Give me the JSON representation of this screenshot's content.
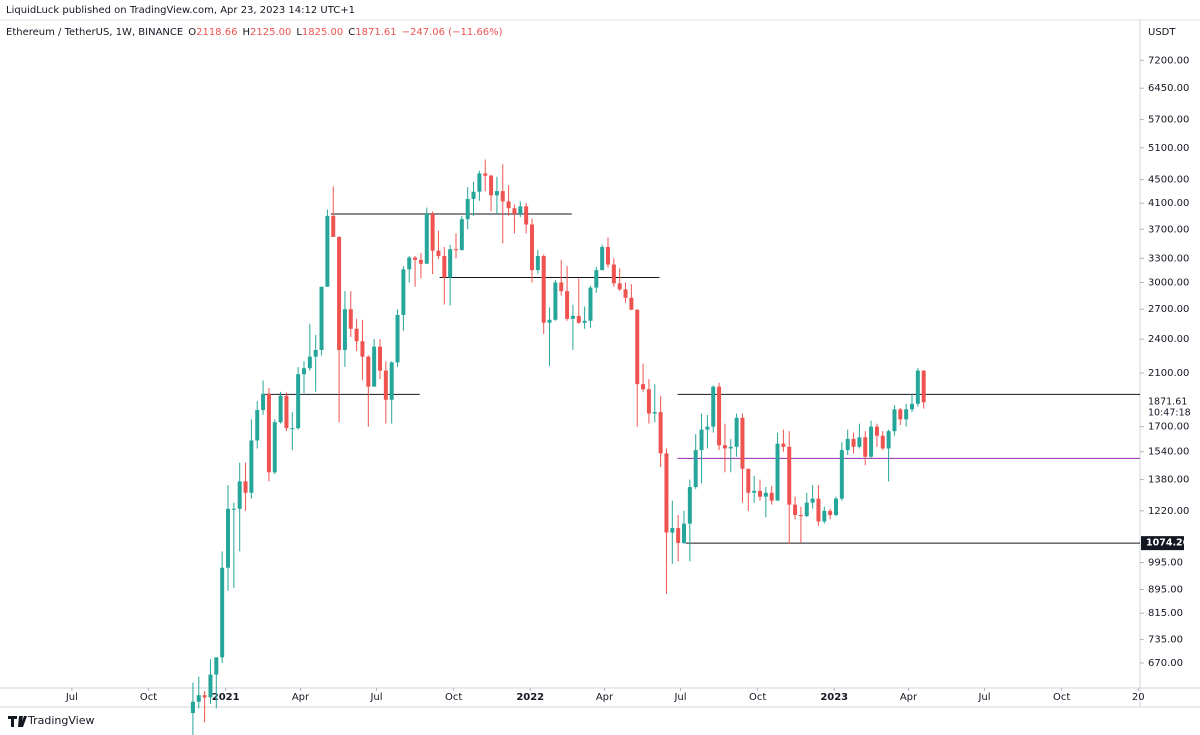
{
  "chart_data": {
    "type": "candlestick",
    "publisher": "LiquidLuck published on TradingView.com, Apr 23, 2023 14:12 UTC+1",
    "symbol": "Ethereum / TetherUS, 1W, BINANCE",
    "legend_prefixes": [
      "O",
      "H",
      "L",
      "C"
    ],
    "legend_values": [
      "2118.66",
      "2125.00",
      "1825.00",
      "1871.61"
    ],
    "legend_change": "−247.06 (−11.66%)",
    "currency": "USDT",
    "countdown": "10:47:18",
    "brand": "TradingView",
    "log_scale": true,
    "grid": false,
    "up_color": "#26a69a",
    "down_color": "#ef5350",
    "ylim": [
      607,
      7800
    ],
    "yticks": [
      {
        "value": 7200,
        "label": "7200.00"
      },
      {
        "value": 6450,
        "label": "6450.00"
      },
      {
        "value": 5700,
        "label": "5700.00"
      },
      {
        "value": 5100,
        "label": "5100.00"
      },
      {
        "value": 4500,
        "label": "4500.00"
      },
      {
        "value": 4100,
        "label": "4100.00"
      },
      {
        "value": 3700,
        "label": "3700.00"
      },
      {
        "value": 3300,
        "label": "3300.00"
      },
      {
        "value": 3000,
        "label": "3000.00"
      },
      {
        "value": 2700,
        "label": "2700.00"
      },
      {
        "value": 2400,
        "label": "2400.00"
      },
      {
        "value": 2100,
        "label": "2100.00"
      },
      {
        "value": 1700,
        "label": "1700.00"
      },
      {
        "value": 1540,
        "label": "1540.00"
      },
      {
        "value": 1380,
        "label": "1380.00"
      },
      {
        "value": 1220,
        "label": "1220.00"
      },
      {
        "value": 995,
        "label": "995.00"
      },
      {
        "value": 895,
        "label": "895.00"
      },
      {
        "value": 815,
        "label": "815.00"
      },
      {
        "value": 735,
        "label": "735.00"
      },
      {
        "value": 670,
        "label": "670.00"
      }
    ],
    "xlim": [
      -33,
      162
    ],
    "xticks": [
      {
        "value": -20.7,
        "label": "Jul"
      },
      {
        "value": -7.6,
        "label": "Oct"
      },
      {
        "value": 5.6,
        "label": "2021"
      },
      {
        "value": 18.4,
        "label": "Apr"
      },
      {
        "value": 31.4,
        "label": "Jul"
      },
      {
        "value": 44.6,
        "label": "Oct"
      },
      {
        "value": 57.7,
        "label": "2022"
      },
      {
        "value": 70.4,
        "label": "Apr"
      },
      {
        "value": 83.4,
        "label": "Jul"
      },
      {
        "value": 96.6,
        "label": "Oct"
      },
      {
        "value": 109.7,
        "label": "2023"
      },
      {
        "value": 122.4,
        "label": "Apr"
      },
      {
        "value": 135.4,
        "label": "Jul"
      },
      {
        "value": 148.6,
        "label": "Oct"
      },
      {
        "value": 161.7,
        "label": "20"
      }
    ],
    "levels": [
      {
        "value": 3930,
        "x": [
          23.6,
          64.8
        ],
        "color": "#131722"
      },
      {
        "value": 1930,
        "x": [
          12.3,
          38.8
        ],
        "color": "#131722"
      },
      {
        "value": 3060,
        "x": [
          42.2,
          79.8
        ],
        "color": "#131722"
      },
      {
        "value": 1930,
        "x": [
          82.9,
          162
        ],
        "color": "#131722"
      },
      {
        "value": 1500,
        "x": [
          82.9,
          162
        ],
        "color": "#9c27b0"
      },
      {
        "value": 1074.26,
        "x": [
          84.3,
          162
        ],
        "color": "#131722"
      }
    ],
    "candles": [
      [
        550,
        620,
        480,
        575
      ],
      [
        575,
        635,
        560,
        590
      ],
      [
        590,
        600,
        530,
        585
      ],
      [
        585,
        680,
        570,
        640
      ],
      [
        640,
        685,
        560,
        685
      ],
      [
        685,
        1040,
        670,
        975
      ],
      [
        975,
        1350,
        890,
        1230
      ],
      [
        1230,
        1260,
        900,
        1230
      ],
      [
        1230,
        1475,
        1040,
        1370
      ],
      [
        1370,
        1475,
        1220,
        1310
      ],
      [
        1310,
        1750,
        1280,
        1610
      ],
      [
        1610,
        1880,
        1560,
        1815
      ],
      [
        1815,
        2040,
        1780,
        1935
      ],
      [
        1935,
        1980,
        1370,
        1420
      ],
      [
        1420,
        1750,
        1410,
        1730
      ],
      [
        1730,
        1950,
        1720,
        1920
      ],
      [
        1920,
        1945,
        1670,
        1690
      ],
      [
        1690,
        1800,
        1550,
        1690
      ],
      [
        1690,
        2150,
        1680,
        2090
      ],
      [
        2090,
        2200,
        1940,
        2140
      ],
      [
        2140,
        2550,
        2120,
        2240
      ],
      [
        2240,
        2440,
        1950,
        2300
      ],
      [
        2300,
        2950,
        2250,
        2950
      ],
      [
        2950,
        4000,
        2950,
        3900
      ],
      [
        3900,
        4380,
        3600,
        3590
      ],
      [
        3590,
        3600,
        1730,
        2300
      ],
      [
        2300,
        2900,
        2150,
        2700
      ],
      [
        2700,
        2900,
        2420,
        2500
      ],
      [
        2500,
        2600,
        2290,
        2380
      ],
      [
        2380,
        2590,
        2040,
        2240
      ],
      [
        2240,
        2250,
        1700,
        1990
      ],
      [
        1990,
        2400,
        1990,
        2330
      ],
      [
        2330,
        2400,
        2050,
        2120
      ],
      [
        2120,
        2200,
        1720,
        1890
      ],
      [
        1890,
        2200,
        1720,
        2190
      ],
      [
        2190,
        2700,
        2150,
        2640
      ],
      [
        2640,
        3200,
        2480,
        3160
      ],
      [
        3160,
        3330,
        3000,
        3310
      ],
      [
        3310,
        3330,
        2950,
        3280
      ],
      [
        3280,
        3370,
        3050,
        3230
      ],
      [
        3230,
        4030,
        3230,
        3930
      ],
      [
        3930,
        3970,
        3100,
        3400
      ],
      [
        3400,
        3680,
        3290,
        3330
      ],
      [
        3330,
        3450,
        2750,
        3060
      ],
      [
        3060,
        3480,
        2740,
        3420
      ],
      [
        3420,
        3640,
        3300,
        3410
      ],
      [
        3410,
        3900,
        3400,
        3850
      ],
      [
        3850,
        4370,
        3700,
        4170
      ],
      [
        4170,
        4460,
        3900,
        4290
      ],
      [
        4290,
        4660,
        4140,
        4610
      ],
      [
        4610,
        4870,
        4300,
        4570
      ],
      [
        4570,
        4590,
        3970,
        4230
      ],
      [
        4230,
        4550,
        3930,
        4300
      ],
      [
        4300,
        4780,
        3500,
        4130
      ],
      [
        4130,
        4400,
        3900,
        4020
      ],
      [
        4020,
        4080,
        3640,
        3930
      ],
      [
        3930,
        4130,
        3880,
        4050
      ],
      [
        4050,
        4100,
        3640,
        3770
      ],
      [
        3770,
        3860,
        3000,
        3150
      ],
      [
        3150,
        3410,
        3100,
        3330
      ],
      [
        3330,
        3350,
        2450,
        2560
      ],
      [
        2560,
        2720,
        2160,
        2590
      ],
      [
        2590,
        3030,
        2580,
        3000
      ],
      [
        3000,
        3280,
        2850,
        2900
      ],
      [
        2900,
        3200,
        2580,
        2600
      ],
      [
        2600,
        2750,
        2300,
        2630
      ],
      [
        2630,
        3050,
        2550,
        2560
      ],
      [
        2560,
        2730,
        2500,
        2580
      ],
      [
        2580,
        2960,
        2510,
        2940
      ],
      [
        2940,
        3190,
        2880,
        3150
      ],
      [
        3150,
        3480,
        3150,
        3450
      ],
      [
        3450,
        3580,
        3180,
        3220
      ],
      [
        3220,
        3300,
        2950,
        2990
      ],
      [
        2990,
        3170,
        2900,
        2920
      ],
      [
        2920,
        3000,
        2770,
        2825
      ],
      [
        2825,
        2980,
        2690,
        2695
      ],
      [
        2695,
        2700,
        1700,
        2010
      ],
      [
        2010,
        2180,
        1950,
        1970
      ],
      [
        1970,
        2050,
        1720,
        1790
      ],
      [
        1790,
        2010,
        1730,
        1800
      ],
      [
        1800,
        1920,
        1450,
        1530
      ],
      [
        1530,
        1560,
        880,
        1120
      ],
      [
        1120,
        1270,
        990,
        1140
      ],
      [
        1140,
        1200,
        1000,
        1075
      ],
      [
        1075,
        1220,
        1070,
        1160
      ],
      [
        1160,
        1380,
        1000,
        1340
      ],
      [
        1340,
        1650,
        1330,
        1550
      ],
      [
        1550,
        1790,
        1360,
        1680
      ],
      [
        1680,
        1780,
        1560,
        1700
      ],
      [
        1700,
        2000,
        1660,
        1990
      ],
      [
        1990,
        2020,
        1550,
        1580
      ],
      [
        1580,
        1720,
        1420,
        1560
      ],
      [
        1560,
        1620,
        1420,
        1570
      ],
      [
        1570,
        1790,
        1510,
        1760
      ],
      [
        1760,
        1790,
        1260,
        1440
      ],
      [
        1440,
        1440,
        1220,
        1310
      ],
      [
        1310,
        1400,
        1260,
        1320
      ],
      [
        1320,
        1380,
        1270,
        1290
      ],
      [
        1290,
        1340,
        1190,
        1310
      ],
      [
        1310,
        1345,
        1250,
        1270
      ],
      [
        1270,
        1660,
        1270,
        1590
      ],
      [
        1590,
        1680,
        1540,
        1570
      ],
      [
        1570,
        1670,
        1070,
        1250
      ],
      [
        1250,
        1290,
        1180,
        1200
      ],
      [
        1200,
        1240,
        1075,
        1195
      ],
      [
        1195,
        1310,
        1190,
        1260
      ],
      [
        1260,
        1350,
        1230,
        1280
      ],
      [
        1280,
        1350,
        1150,
        1170
      ],
      [
        1170,
        1240,
        1160,
        1220
      ],
      [
        1220,
        1230,
        1180,
        1200
      ],
      [
        1200,
        1290,
        1195,
        1280
      ],
      [
        1280,
        1600,
        1270,
        1550
      ],
      [
        1550,
        1680,
        1520,
        1620
      ],
      [
        1620,
        1660,
        1530,
        1570
      ],
      [
        1570,
        1720,
        1560,
        1630
      ],
      [
        1630,
        1670,
        1460,
        1510
      ],
      [
        1510,
        1740,
        1500,
        1700
      ],
      [
        1700,
        1720,
        1570,
        1640
      ],
      [
        1640,
        1670,
        1550,
        1560
      ],
      [
        1560,
        1680,
        1370,
        1670
      ],
      [
        1670,
        1850,
        1640,
        1820
      ],
      [
        1820,
        1830,
        1710,
        1750
      ],
      [
        1750,
        1860,
        1700,
        1820
      ],
      [
        1820,
        1930,
        1800,
        1860
      ],
      [
        1860,
        2140,
        1840,
        2120
      ],
      [
        2118.66,
        2125.0,
        1825.0,
        1871.61
      ]
    ]
  }
}
